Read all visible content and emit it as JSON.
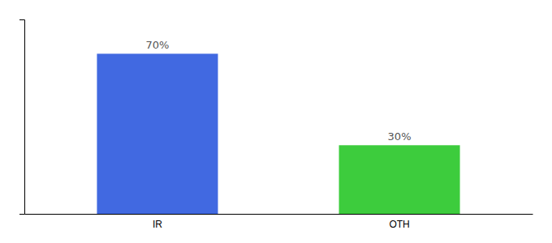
{
  "chart_data": {
    "type": "bar",
    "categories": [
      "IR",
      "OTH"
    ],
    "values": [
      70,
      30
    ],
    "value_labels": [
      "70%",
      "30%"
    ],
    "colors": [
      "#4169e1",
      "#3dcc3d"
    ],
    "ylim": [
      0,
      85
    ],
    "data_labels": true,
    "tick_labels": "x",
    "grid": false
  }
}
